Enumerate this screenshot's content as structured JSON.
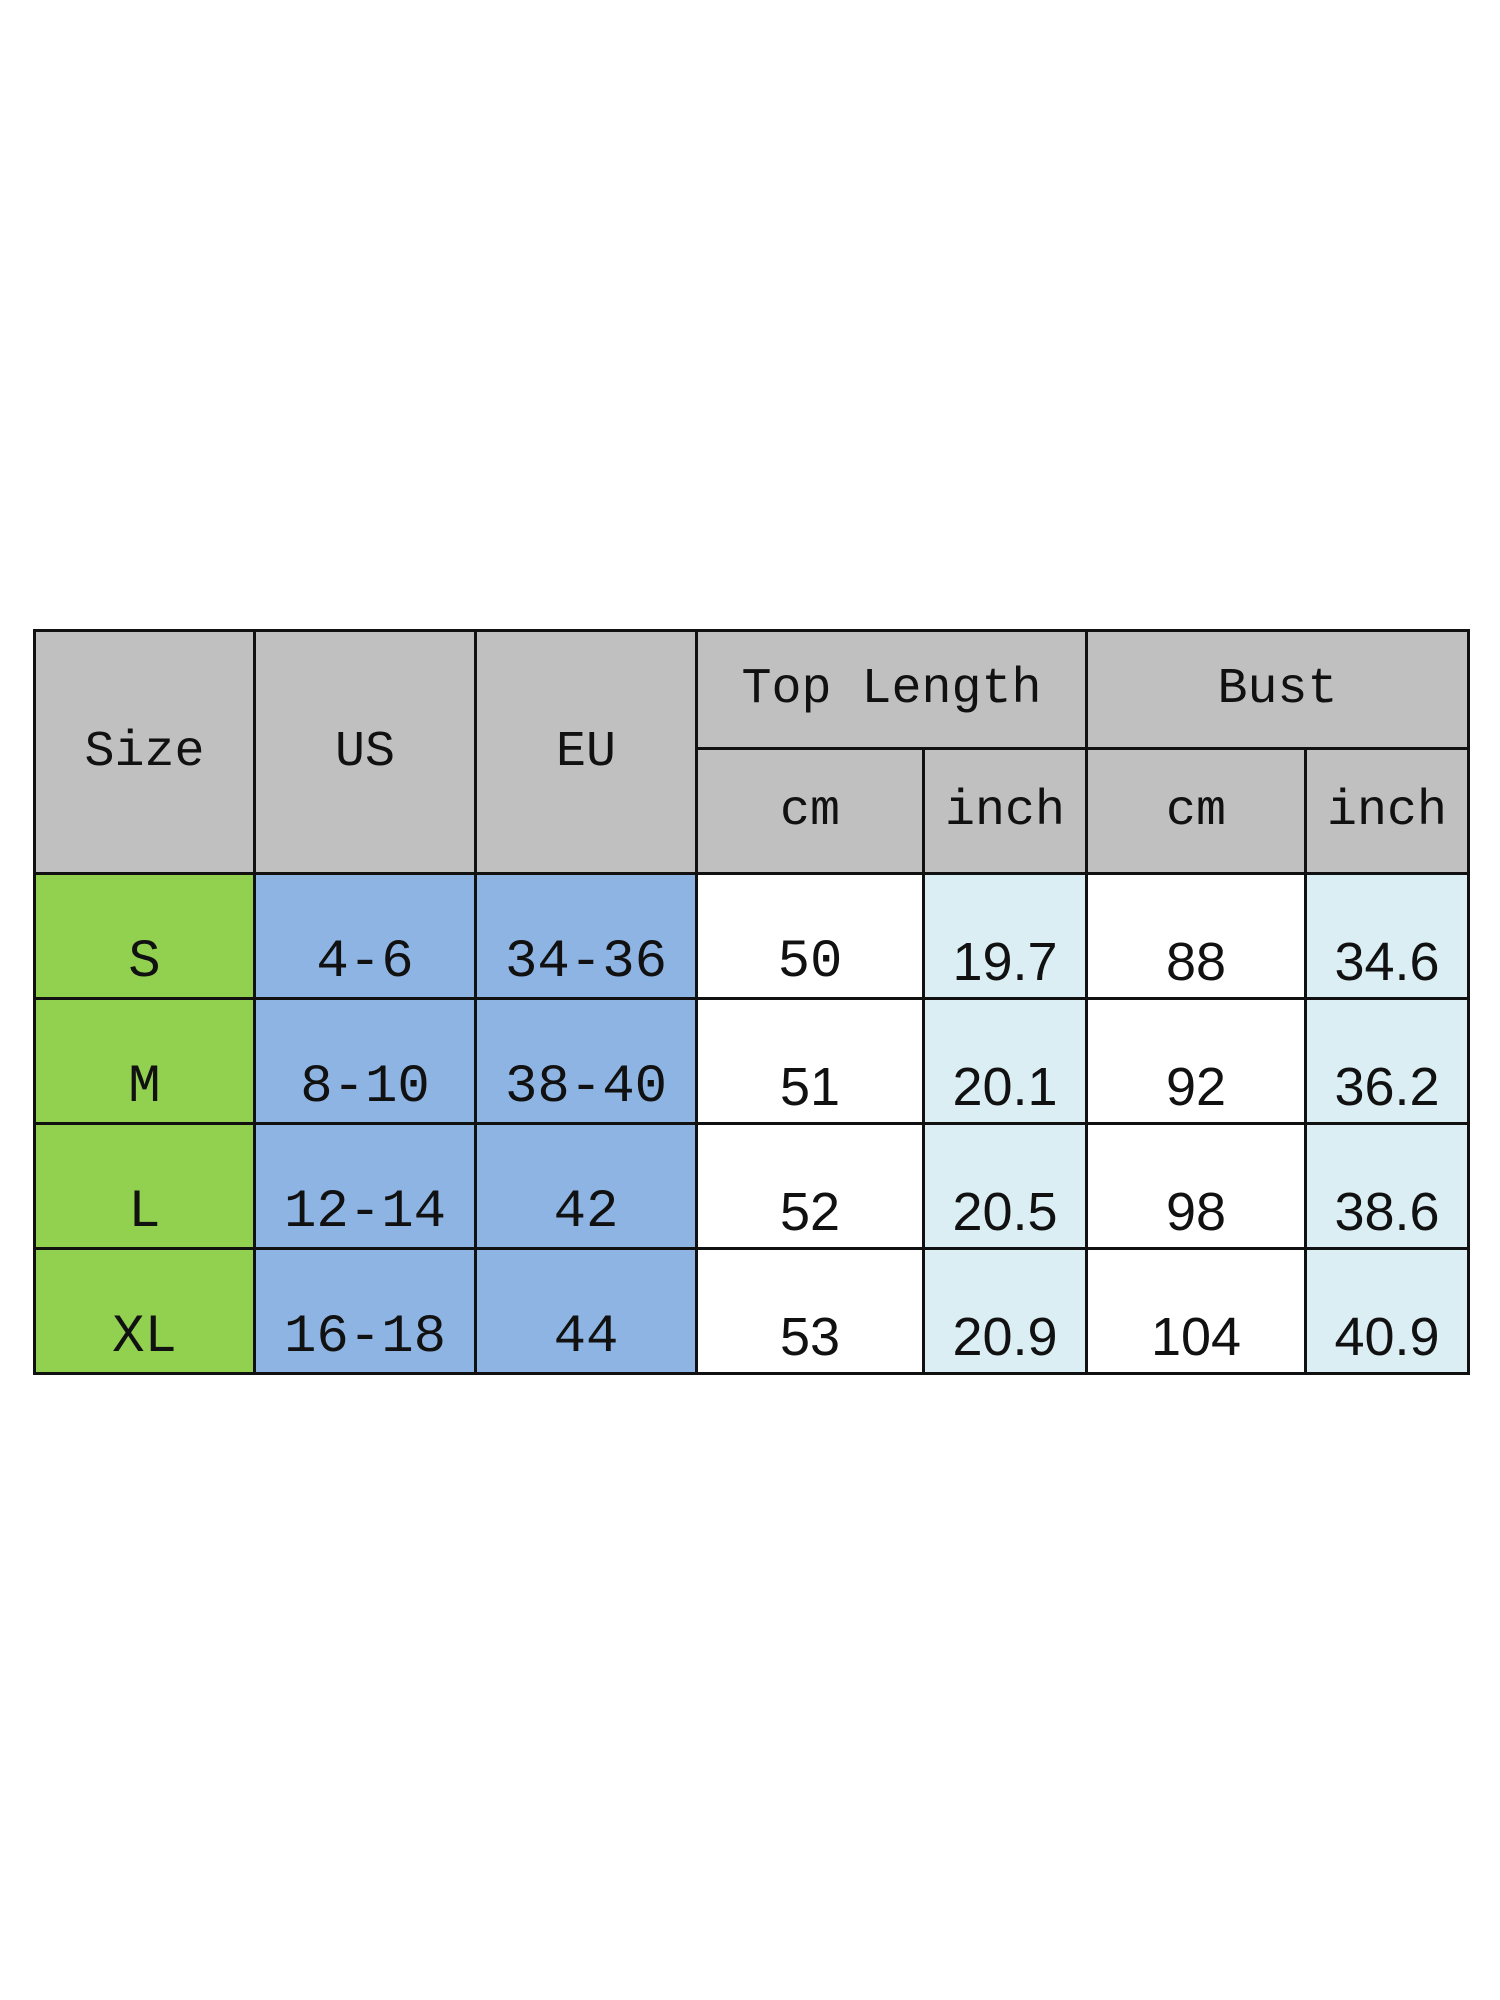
{
  "header": {
    "size": "Size",
    "us": "US",
    "eu": "EU",
    "top_length": "Top Length",
    "bust": "Bust",
    "units": [
      "cm",
      "inch",
      "cm",
      "inch"
    ]
  },
  "rows": [
    {
      "size": "S",
      "us": "4-6",
      "eu": "34-36",
      "top_cm": "50",
      "top_inch": "19.7",
      "bust_cm": "88",
      "bust_inch": "34.6"
    },
    {
      "size": "M",
      "us": "8-10",
      "eu": "38-40",
      "top_cm": "51",
      "top_inch": "20.1",
      "bust_cm": "92",
      "bust_inch": "36.2"
    },
    {
      "size": "L",
      "us": "12-14",
      "eu": "42",
      "top_cm": "52",
      "top_inch": "20.5",
      "bust_cm": "98",
      "bust_inch": "38.6"
    },
    {
      "size": "XL",
      "us": "16-18",
      "eu": "44",
      "top_cm": "53",
      "top_inch": "20.9",
      "bust_cm": "104",
      "bust_inch": "40.9"
    }
  ],
  "colors": {
    "header": "#c0c0c0",
    "size_col": "#92d050",
    "us_eu_cols": "#8db4e2",
    "inch_cols": "#dbeef4"
  }
}
